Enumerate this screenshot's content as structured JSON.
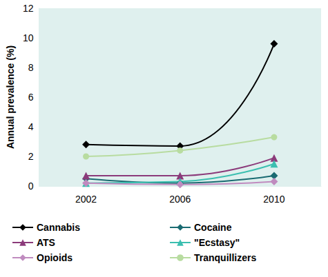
{
  "chart_data": {
    "type": "line",
    "y_label": "Annual prevalence (%)",
    "categories": [
      "2002",
      "2006",
      "2010"
    ],
    "ylim": [
      0,
      12
    ],
    "yticks": [
      0,
      2,
      4,
      6,
      8,
      10,
      12
    ],
    "grid": false,
    "legend": "bottom",
    "line_style": "smooth",
    "series": [
      {
        "name": "Cannabis",
        "color": "#000000",
        "marker": "diamond",
        "values": [
          2.8,
          2.7,
          9.6
        ]
      },
      {
        "name": "Cocaine",
        "color": "#1a6b72",
        "marker": "diamond",
        "values": [
          0.5,
          0.2,
          0.7
        ]
      },
      {
        "name": "ATS",
        "color": "#8b3a7a",
        "marker": "triangle",
        "values": [
          0.7,
          0.7,
          1.9
        ]
      },
      {
        "name": "\"Ecstasy\"",
        "color": "#3bbfb0",
        "marker": "triangle",
        "values": [
          0.2,
          0.3,
          1.5
        ]
      },
      {
        "name": "Opioids",
        "color": "#c08bbf",
        "marker": "diamond",
        "values": [
          0.2,
          0.1,
          0.3
        ]
      },
      {
        "name": "Tranquillizers",
        "color": "#b8dca0",
        "marker": "circle",
        "values": [
          2.0,
          2.4,
          3.3
        ]
      }
    ]
  }
}
